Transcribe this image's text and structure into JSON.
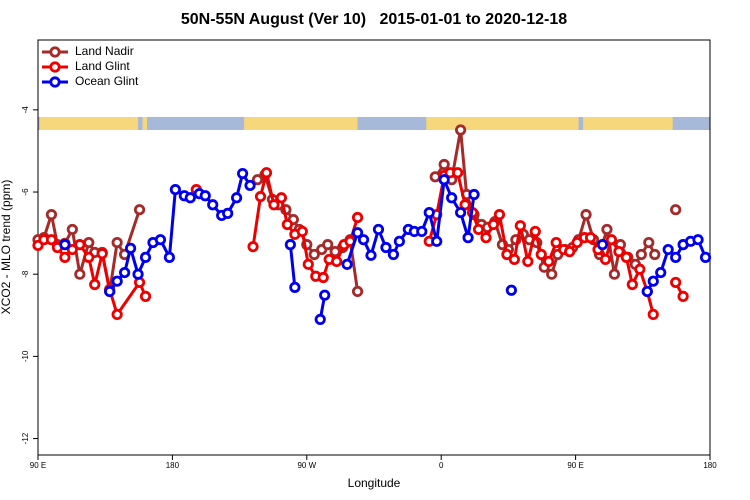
{
  "chart_data": {
    "type": "line",
    "title": "50N-55N August (Ver 10)   2015-01-01 to 2020-12-18",
    "xlabel": "Longitude",
    "ylabel": "XCO2 - MLO trend (ppm)",
    "xlim": [
      90,
      540
    ],
    "ylim": [
      -12.4,
      -2.3
    ],
    "xticks": [
      {
        "value": 90,
        "label": "90 E"
      },
      180,
      {
        "value": 270,
        "label": "90 W"
      },
      {
        "value": 360,
        "label": "0"
      },
      {
        "value": 450,
        "label": "90 E"
      },
      {
        "value": 540,
        "label": "180"
      }
    ],
    "yticks": [
      -4,
      -6,
      -8,
      -10,
      -12
    ],
    "grid": false,
    "legend": "upper left",
    "series": [
      {
        "name": "Land Nadir",
        "color": "#a52a2a",
        "x": [
          90,
          94,
          99,
          103,
          108,
          113,
          118,
          124,
          128,
          133,
          138,
          143,
          148,
          158,
          null,
          237,
          242,
          247,
          251,
          256,
          261,
          265,
          270,
          275,
          280,
          284,
          289,
          294,
          299,
          304,
          null,
          356,
          362,
          367,
          373,
          377,
          382,
          387,
          391,
          396,
          401,
          405,
          410,
          415,
          419,
          424,
          429,
          434,
          438,
          443,
          448,
          452,
          457,
          462,
          466,
          471,
          476,
          480,
          485,
          490,
          494,
          499,
          503,
          null,
          517
        ],
        "values": [
          -7.16,
          -7.11,
          -6.55,
          -7.28,
          -7.25,
          -6.91,
          -8.0,
          -7.23,
          -7.47,
          -7.47,
          -8.42,
          -7.23,
          -7.52,
          -6.43,
          null,
          -5.7,
          -5.58,
          -6.18,
          -6.31,
          -6.43,
          -6.67,
          -6.91,
          -7.28,
          -7.52,
          -7.4,
          -7.28,
          -7.45,
          -7.35,
          -7.16,
          -8.42,
          null,
          -5.63,
          -5.33,
          -5.7,
          -4.49,
          -6.06,
          -6.55,
          -6.79,
          -6.86,
          -6.72,
          -7.28,
          -7.4,
          -7.16,
          -7.03,
          -7.16,
          -7.23,
          -7.83,
          -8.0,
          -7.52,
          -7.4,
          -7.35,
          -7.16,
          -6.55,
          -7.16,
          -7.52,
          -6.91,
          -8.0,
          -7.28,
          -7.59,
          -7.76,
          -7.52,
          -7.23,
          -7.52,
          null,
          -6.43
        ]
      },
      {
        "name": "Land Glint",
        "color": "#ee0000",
        "x": [
          90,
          94,
          99,
          103,
          108,
          113,
          118,
          124,
          128,
          133,
          138,
          143,
          158,
          162,
          null,
          196,
          null,
          234,
          239,
          243,
          248,
          253,
          257,
          262,
          267,
          271,
          276,
          281,
          285,
          290,
          295,
          299,
          304,
          null,
          352,
          357,
          362,
          366,
          371,
          376,
          381,
          385,
          390,
          395,
          399,
          404,
          409,
          413,
          418,
          423,
          427,
          432,
          437,
          442,
          446,
          451,
          456,
          460,
          465,
          470,
          474,
          479,
          484,
          488,
          493,
          498,
          502,
          null,
          517,
          522
        ],
        "values": [
          -7.3,
          -7.16,
          -7.16,
          -7.35,
          -7.59,
          -7.4,
          -7.28,
          -7.59,
          -8.25,
          -7.5,
          -8.37,
          -8.98,
          -8.2,
          -8.54,
          null,
          -5.94,
          null,
          -7.33,
          -6.11,
          -5.53,
          -6.31,
          -6.14,
          -6.79,
          -7.03,
          -6.96,
          -7.76,
          -8.05,
          -8.08,
          -7.64,
          -7.69,
          -7.28,
          -7.2,
          -6.62,
          null,
          -7.2,
          -6.55,
          -5.6,
          -5.53,
          -5.53,
          -6.31,
          -6.5,
          -6.91,
          -7.11,
          -6.79,
          -6.55,
          -7.52,
          -7.64,
          -6.82,
          -7.69,
          -6.96,
          -7.52,
          -7.69,
          -7.23,
          -7.4,
          -7.45,
          -7.23,
          -7.11,
          -7.11,
          -7.4,
          -7.64,
          -7.16,
          -7.45,
          -7.59,
          -8.25,
          -7.88,
          -8.42,
          -8.98,
          null,
          -8.2,
          -8.54
        ]
      },
      {
        "name": "Ocean Glint",
        "color": "#0000ee",
        "x": [
          108,
          null,
          138,
          143,
          148,
          152,
          157,
          162,
          167,
          172,
          178,
          182,
          188,
          192,
          198,
          202,
          207,
          213,
          217,
          223,
          227,
          232,
          null,
          259,
          262,
          null,
          279,
          282,
          null,
          297,
          304,
          308,
          313,
          318,
          323,
          328,
          332,
          338,
          342,
          347,
          352,
          357,
          362,
          367,
          373,
          378,
          382,
          null,
          407,
          null,
          468,
          null,
          498,
          502,
          507,
          512,
          517,
          522,
          527,
          532,
          537
        ],
        "values": [
          -7.28,
          null,
          -8.42,
          -8.17,
          -7.96,
          -7.37,
          -8.0,
          -7.59,
          -7.23,
          -7.16,
          -7.59,
          -5.94,
          -6.09,
          -6.14,
          -6.04,
          -6.09,
          -6.31,
          -6.57,
          -6.52,
          -6.14,
          -5.55,
          -5.84,
          null,
          -7.28,
          -8.32,
          null,
          -9.1,
          -8.51,
          null,
          -7.76,
          -6.99,
          -7.16,
          -7.54,
          -6.91,
          -7.35,
          -7.52,
          -7.2,
          -6.91,
          -6.96,
          -6.96,
          -6.5,
          -7.2,
          -5.7,
          -6.14,
          -6.5,
          -7.11,
          -6.06,
          null,
          -8.39,
          null,
          -7.28,
          null,
          -8.42,
          -8.17,
          -7.96,
          -7.4,
          -7.59,
          -7.28,
          -7.2,
          -7.16,
          -7.59
        ]
      }
    ]
  }
}
